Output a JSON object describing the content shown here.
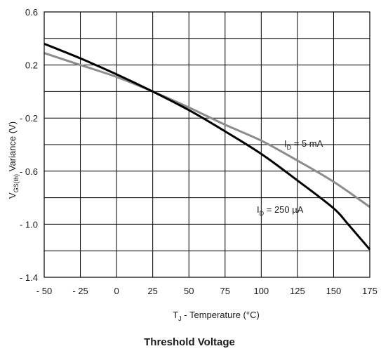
{
  "chart_data": {
    "type": "line",
    "title": "Threshold Voltage",
    "xlabel": {
      "main": "T",
      "sub": "J",
      "rest": " - Temperature (°C)"
    },
    "ylabel": {
      "main": "V",
      "sub": "GS(th)",
      "rest": " Variance (V)"
    },
    "xlim": [
      -50,
      175
    ],
    "ylim": [
      -1.4,
      0.6
    ],
    "x_ticks": [
      -50,
      -25,
      0,
      25,
      50,
      75,
      100,
      125,
      150,
      175
    ],
    "x_tick_labels": [
      "- 50",
      "- 25",
      "0",
      "25",
      "50",
      "75",
      "100",
      "125",
      "150",
      "175"
    ],
    "y_ticks": [
      0.6,
      0.2,
      -0.2,
      -0.6,
      -1.0,
      -1.4
    ],
    "y_tick_labels": [
      "0.6",
      "0.2",
      "- 0.2",
      "- 0.6",
      "- 1.0",
      "- 1.4"
    ],
    "grid": true,
    "series": [
      {
        "name": "I_D = 5 mA",
        "label": {
          "main": "I",
          "sub": "D",
          "rest": " = 5 mA"
        },
        "color": "#8c8c8c",
        "x": [
          -50,
          -25,
          0,
          25,
          50,
          75,
          100,
          125,
          150,
          175
        ],
        "y": [
          0.29,
          0.2,
          0.11,
          0.0,
          -0.12,
          -0.25,
          -0.37,
          -0.52,
          -0.68,
          -0.87
        ]
      },
      {
        "name": "I_D = 250 µA",
        "label": {
          "main": "I",
          "sub": "D",
          "rest": " = 250 µA"
        },
        "color": "#000000",
        "x": [
          -50,
          -25,
          0,
          25,
          50,
          75,
          100,
          125,
          150,
          160,
          175
        ],
        "y": [
          0.36,
          0.25,
          0.13,
          0.0,
          -0.14,
          -0.3,
          -0.47,
          -0.67,
          -0.88,
          -1.0,
          -1.19
        ]
      }
    ]
  }
}
